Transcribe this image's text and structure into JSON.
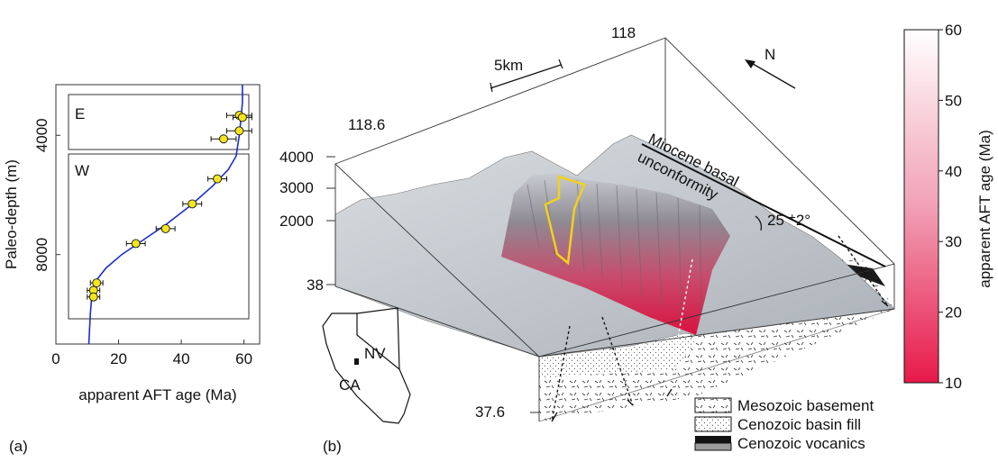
{
  "panel_a": {
    "label": "(a)",
    "xlabel": "apparent  AFT age (Ma)",
    "ylabel": "Paleo-depth (m)",
    "x_ticks": [
      "0",
      "20",
      "40",
      "60"
    ],
    "y_ticks": [
      "4000",
      "8000"
    ],
    "box_labels": [
      "E",
      "W"
    ],
    "chart_data": {
      "type": "scatter",
      "xlabel": "apparent  AFT age (Ma)",
      "ylabel": "Paleo-depth (m)",
      "xlim": [
        0,
        65
      ],
      "ylim": [
        11000,
        2300
      ],
      "x_ticks": [
        0,
        20,
        40,
        60
      ],
      "y_ticks": [
        4000,
        8000
      ],
      "groups": [
        {
          "name": "E",
          "depth_range": [
            2900,
            4400
          ]
        },
        {
          "name": "W",
          "depth_range": [
            4600,
            9800
          ]
        }
      ],
      "points": [
        {
          "x": 58.5,
          "y": 3330,
          "xerr": 4
        },
        {
          "x": 59.5,
          "y": 3400,
          "xerr": 3
        },
        {
          "x": 58.5,
          "y": 3850,
          "xerr": 4
        },
        {
          "x": 53.5,
          "y": 4120,
          "xerr": 4
        },
        {
          "x": 51.5,
          "y": 5460,
          "xerr": 3
        },
        {
          "x": 43.5,
          "y": 6300,
          "xerr": 3
        },
        {
          "x": 35.0,
          "y": 7130,
          "xerr": 3
        },
        {
          "x": 25.5,
          "y": 7630,
          "xerr": 3
        },
        {
          "x": 13.0,
          "y": 8950,
          "xerr": 2
        },
        {
          "x": 12.0,
          "y": 9200,
          "xerr": 2
        },
        {
          "x": 12.0,
          "y": 9420,
          "xerr": 2
        }
      ],
      "model_curve": [
        [
          59.5,
          2300
        ],
        [
          59.5,
          2900
        ],
        [
          59.0,
          3500
        ],
        [
          58.5,
          4000
        ],
        [
          57.5,
          4700
        ],
        [
          55.0,
          5150
        ],
        [
          50.0,
          5700
        ],
        [
          43.0,
          6350
        ],
        [
          35.0,
          7000
        ],
        [
          28.0,
          7500
        ],
        [
          21.0,
          8000
        ],
        [
          16.0,
          8450
        ],
        [
          13.0,
          8850
        ],
        [
          11.5,
          9300
        ],
        [
          11.0,
          10000
        ],
        [
          10.5,
          11000
        ]
      ]
    }
  },
  "panel_b": {
    "label": "(b)",
    "scale_bar": "5km",
    "north": "N",
    "lon_labels": [
      "118",
      "118.6"
    ],
    "lat_labels": [
      "38",
      "37.6"
    ],
    "depth_ticks": [
      "4000",
      "3000",
      "2000"
    ],
    "annotation_line1": "Miocene basal",
    "annotation_line2": "unconformity",
    "angle_label": "25 ",
    "angle_unc": "+",
    "angle_rest": "2°",
    "inset_labels": [
      "NV",
      "CA"
    ],
    "legend": [
      {
        "label": "Mesozoic basement",
        "pattern": "dashes"
      },
      {
        "label": "Cenozoic basin fill",
        "pattern": "dots"
      },
      {
        "label": "Cenozoic vocanics",
        "pattern": "solid"
      }
    ],
    "colorbar": {
      "label": "apparent AFT age (Ma)",
      "ticks": [
        "60",
        "50",
        "40",
        "30",
        "20",
        "10"
      ],
      "min": 10,
      "max": 60,
      "color_low": "#e8194a",
      "color_high": "#ffffff"
    }
  }
}
